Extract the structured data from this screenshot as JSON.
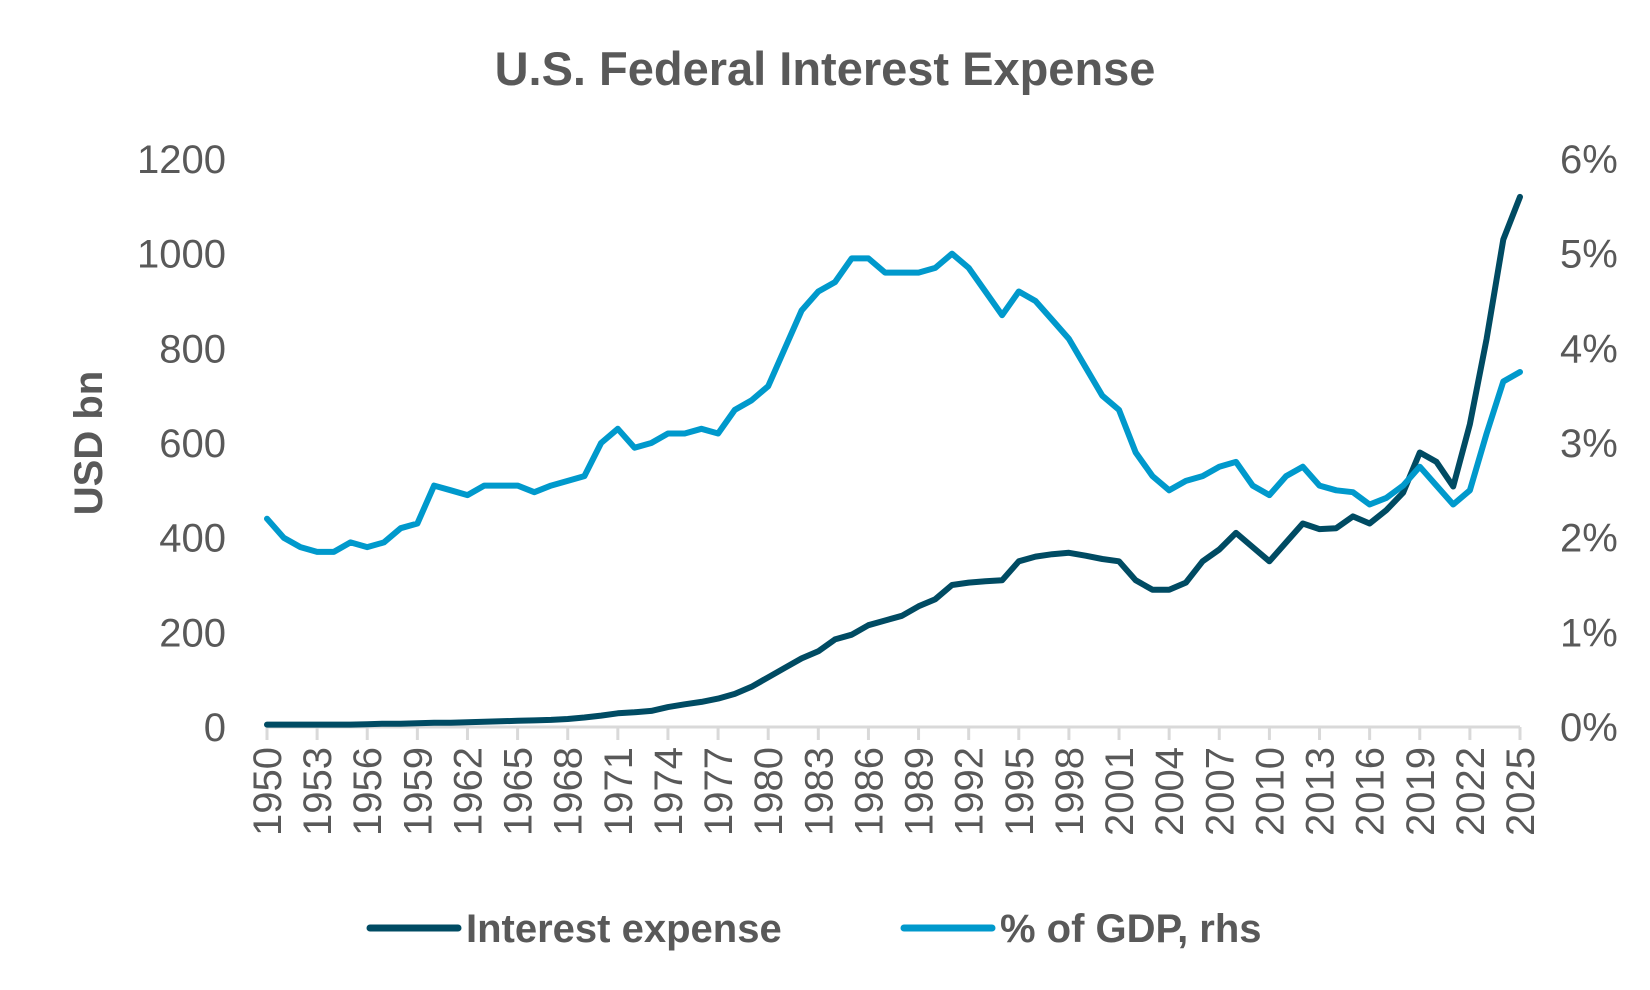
{
  "chart_data": {
    "type": "line",
    "title": "U.S. Federal Interest Expense",
    "ylabel": "USD bn",
    "y2label": "",
    "ylim": [
      0,
      1200
    ],
    "yticks": [
      0,
      200,
      400,
      600,
      800,
      1000,
      1200
    ],
    "y2lim": [
      0,
      6
    ],
    "y2ticks": [
      "0%",
      "1%",
      "2%",
      "3%",
      "4%",
      "5%",
      "6%"
    ],
    "xlim": [
      1950,
      2025
    ],
    "xticks": [
      1950,
      1953,
      1956,
      1959,
      1962,
      1965,
      1968,
      1971,
      1974,
      1977,
      1980,
      1983,
      1986,
      1989,
      1992,
      1995,
      1998,
      2001,
      2004,
      2007,
      2010,
      2013,
      2016,
      2019,
      2022,
      2025
    ],
    "grid": false,
    "legend": "bottom",
    "x": [
      1950,
      1951,
      1952,
      1953,
      1954,
      1955,
      1956,
      1957,
      1958,
      1959,
      1960,
      1961,
      1962,
      1963,
      1964,
      1965,
      1966,
      1967,
      1968,
      1969,
      1970,
      1971,
      1972,
      1973,
      1974,
      1975,
      1976,
      1977,
      1978,
      1979,
      1980,
      1981,
      1982,
      1983,
      1984,
      1985,
      1986,
      1987,
      1988,
      1989,
      1990,
      1991,
      1992,
      1993,
      1994,
      1995,
      1996,
      1997,
      1998,
      1999,
      2000,
      2001,
      2002,
      2003,
      2004,
      2005,
      2006,
      2007,
      2008,
      2009,
      2010,
      2011,
      2012,
      2013,
      2014,
      2015,
      2016,
      2017,
      2018,
      2019,
      2020,
      2021,
      2022,
      2023,
      2024,
      2025
    ],
    "series": [
      {
        "name": "Interest expense",
        "axis": "left",
        "color": "#004B63",
        "values": [
          5,
          5,
          5,
          5,
          5,
          5,
          6,
          7,
          7,
          8,
          9,
          9,
          10,
          11,
          12,
          13,
          14,
          15,
          17,
          20,
          24,
          29,
          31,
          34,
          42,
          48,
          53,
          60,
          70,
          85,
          105,
          125,
          145,
          160,
          185,
          195,
          215,
          225,
          235,
          255,
          270,
          300,
          305,
          308,
          310,
          350,
          360,
          365,
          368,
          362,
          355,
          350,
          310,
          290,
          290,
          305,
          350,
          375,
          410,
          380,
          350,
          390,
          430,
          418,
          420,
          445,
          430,
          458,
          495,
          580,
          560,
          508,
          640,
          820,
          1030,
          1120
        ]
      },
      {
        "name": "% of GDP, rhs",
        "axis": "right",
        "color": "#0099CC",
        "values": [
          2.2,
          2.0,
          1.9,
          1.85,
          1.85,
          1.95,
          1.9,
          1.95,
          2.1,
          2.15,
          2.55,
          2.5,
          2.45,
          2.55,
          2.55,
          2.55,
          2.48,
          2.55,
          2.6,
          2.65,
          3.0,
          3.15,
          2.95,
          3.0,
          3.1,
          3.1,
          3.15,
          3.1,
          3.35,
          3.45,
          3.6,
          4.0,
          4.4,
          4.6,
          4.7,
          4.95,
          4.95,
          4.8,
          4.8,
          4.8,
          4.85,
          5.0,
          4.85,
          4.6,
          4.35,
          4.6,
          4.5,
          4.3,
          4.1,
          3.8,
          3.5,
          3.35,
          2.9,
          2.65,
          2.5,
          2.6,
          2.65,
          2.75,
          2.8,
          2.55,
          2.45,
          2.65,
          2.75,
          2.55,
          2.5,
          2.48,
          2.35,
          2.42,
          2.55,
          2.75,
          2.55,
          2.35,
          2.5,
          3.1,
          3.65,
          3.75
        ]
      }
    ]
  }
}
